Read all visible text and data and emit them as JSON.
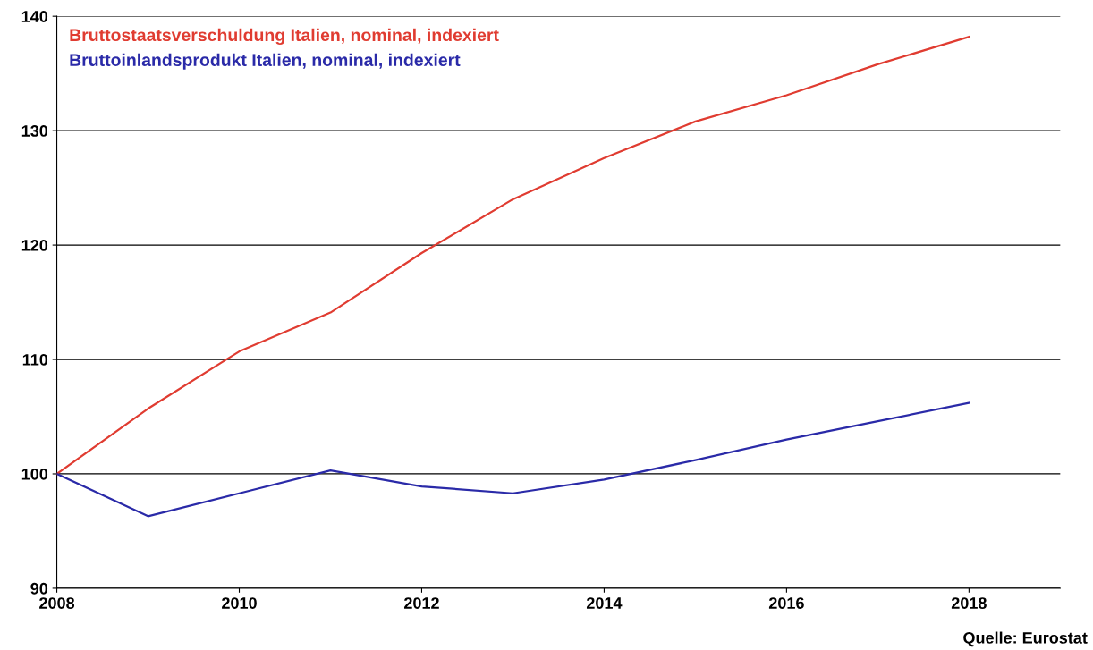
{
  "chart_data": {
    "type": "line",
    "x": [
      2008,
      2009,
      2010,
      2011,
      2012,
      2013,
      2014,
      2015,
      2016,
      2017,
      2018
    ],
    "series": [
      {
        "name": "Bruttostaatsverschuldung Italien, nominal, indexiert",
        "color": "#e03c31",
        "values": [
          100,
          105.7,
          110.7,
          114.1,
          119.3,
          124.0,
          127.6,
          130.8,
          133.1,
          135.8,
          138.2
        ]
      },
      {
        "name": "Bruttoinlandsprodukt Italien, nominal, indexiert",
        "color": "#2a2aa8",
        "values": [
          100,
          96.3,
          98.3,
          100.3,
          98.9,
          98.3,
          99.5,
          101.2,
          103.0,
          104.6,
          106.2
        ]
      }
    ],
    "xlim": [
      2008,
      2019
    ],
    "xticks": [
      2008,
      2010,
      2012,
      2014,
      2016,
      2018
    ],
    "ylim": [
      90,
      140
    ],
    "yticks": [
      90,
      100,
      110,
      120,
      130,
      140
    ],
    "grid": "y",
    "legend": "top left",
    "marker": "none",
    "line_style": "solid",
    "annotations": [
      "Quelle: Eurostat"
    ]
  }
}
